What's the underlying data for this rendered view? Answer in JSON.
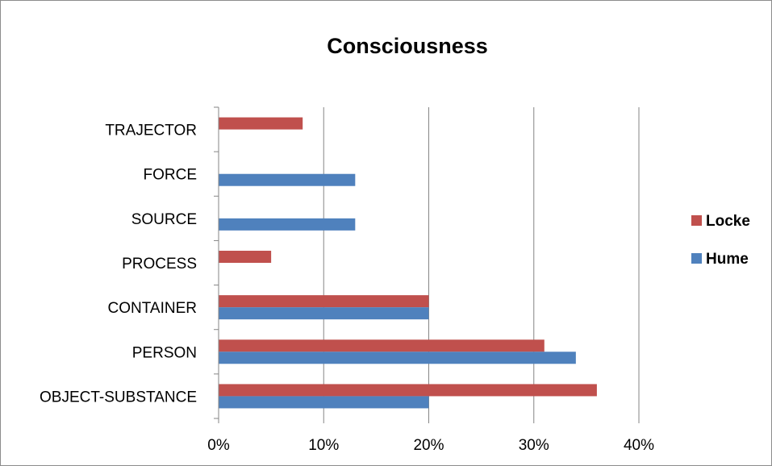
{
  "chart_data": {
    "type": "bar",
    "orientation": "horizontal",
    "title": "Consciousness",
    "categories": [
      "OBJECT-SUBSTANCE",
      "PERSON",
      "CONTAINER",
      "PROCESS",
      "SOURCE",
      "FORCE",
      "TRAJECTOR"
    ],
    "series": [
      {
        "name": "Locke",
        "color": "#c0504d",
        "values": [
          36,
          31,
          20,
          5,
          0,
          0,
          8
        ]
      },
      {
        "name": "Hume",
        "color": "#4f81bd",
        "values": [
          20,
          34,
          20,
          0,
          13,
          13,
          0
        ]
      }
    ],
    "xlim": [
      0,
      40
    ],
    "xticks": [
      "0%",
      "10%",
      "20%",
      "30%",
      "40%"
    ],
    "value_unit": "%",
    "grid": "vertical",
    "legend_position": "right"
  }
}
